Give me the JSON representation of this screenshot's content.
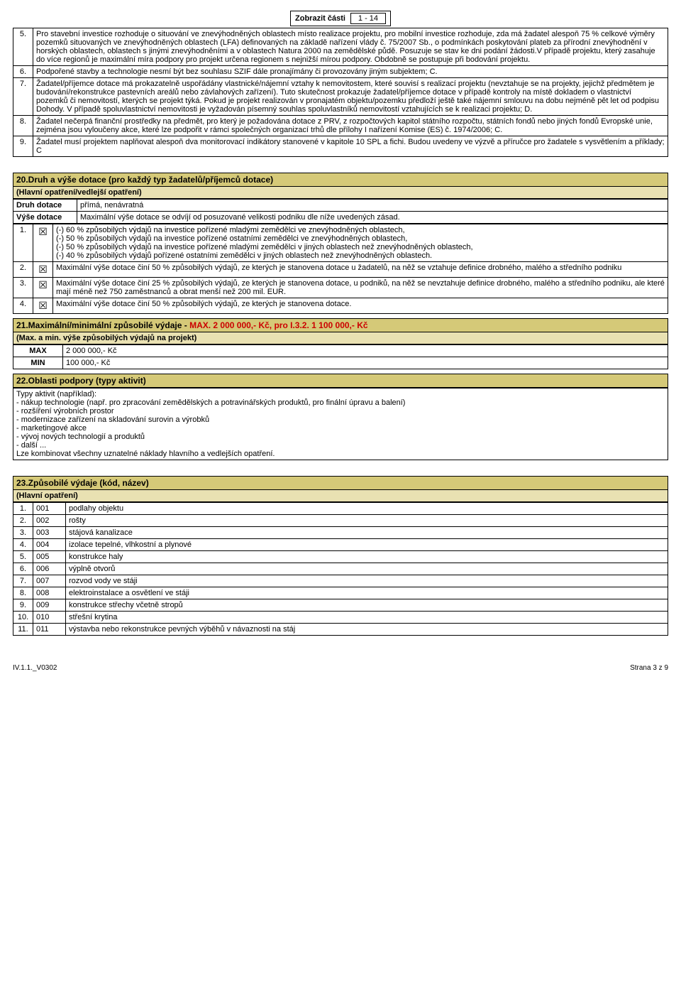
{
  "zobrazit": {
    "label": "Zobrazit části",
    "value": "1 - 14"
  },
  "criteria": [
    {
      "n": "5.",
      "text": "Pro stavební investice rozhoduje o situování ve znevýhodněných oblastech místo realizace projektu, pro mobilní investice rozhoduje, zda má žadatel alespoň  75 % celkové výměry pozemků situovaných ve znevýhodněných oblastech (LFA) definovaných na základě nařízení vlády č. 75/2007 Sb., o podmínkách poskytování plateb za přírodní znevýhodnění v horských oblastech, oblastech s jinými znevýhodněními a v oblastech Natura 2000 na zemědělské půdě. Posuzuje se stav ke dni podání žádosti.V případě projektu, který zasahuje do více regionů je maximální míra podpory pro projekt určena regionem s nejnižší mírou podpory. Obdobně se postupuje při bodování projektu."
    },
    {
      "n": "6.",
      "text": "Podpořené stavby a technologie nesmí být bez souhlasu SZIF dále pronajímány či provozovány jiným subjektem; C."
    },
    {
      "n": "7.",
      "text": "Žadatel/příjemce dotace má prokazatelně uspořádány vlastnické/nájemní vztahy k nemovitostem, které souvisí s realizací projektu (nevztahuje se na projekty, jejichž předmětem je budování/rekonstrukce pastevních areálů nebo závlahových zařízení). Tuto skutečnost prokazuje žadatel/příjemce dotace v případě kontroly na místě dokladem o vlastnictví pozemků či nemovitostí, kterých se projekt týká. Pokud je projekt realizován v pronajatém objektu/pozemku předloží ještě také nájemní smlouvu na dobu nejméně pět let od podpisu Dohody. V případě spoluvlastnictví nemovitosti je vyžadován písemný souhlas spoluvlastníků nemovitostí vztahujících se k realizaci projektu; D."
    },
    {
      "n": "8.",
      "text": "Žadatel nečerpá finanční prostředky na předmět, pro který je  požadována dotace z PRV, z rozpočtových kapitol státního rozpočtu, státních fondů nebo jiných fondů Evropské unie, zejména jsou vyloučeny akce, které lze podpořit v rámci společných organizací trhů dle přílohy I nařízení Komise (ES) č. 1974/2006; C."
    },
    {
      "n": "9.",
      "text": "Žadatel musí projektem naplňovat alespoň dva monitorovací indikátory stanovené v kapitole 10 SPL a fichi. Budou uvedeny ve výzvě a příručce pro žadatele s vysvětlením a příklady; C"
    }
  ],
  "s20": {
    "title": "20.Druh a výše dotace (pro každý typ žadatelů/příjemců dotace)",
    "subtitle": "(Hlavní opatření/vedlejší opatření)",
    "rows": [
      {
        "label": "Druh dotace",
        "text": "přímá, nenávratná"
      },
      {
        "label": "Výše dotace",
        "text": "Maximální výše dotace se odvíjí od posuzované velikosti podniku dle níže uvedených zásad."
      }
    ],
    "items": [
      {
        "n": "1.",
        "chk": "☒",
        "text": "(-) 60 % způsobilých výdajů na investice pořízené mladými zemědělci ve znevýhodněných oblastech,\n(-) 50 % způsobilých výdajů na investice pořízené ostatními zemědělci ve znevýhodněných oblastech,\n(-) 50 % způsobilých výdajů na investice pořízené mladými zemědělci v jiných oblastech než znevýhodněných oblastech,\n(-) 40 % způsobilých výdajů pořízené ostatními zemědělci v jiných oblastech než znevýhodněných oblastech."
      },
      {
        "n": "2.",
        "chk": "☒",
        "text": "Maximální výše dotace činí 50 % způsobilých výdajů, ze kterých je stanovena dotace u žadatelů, na něž se vztahuje definice drobného, malého a středního podniku"
      },
      {
        "n": "3.",
        "chk": "☒",
        "text": "Maximální výše dotace činí 25 % způsobilých výdajů, ze kterých je stanovena dotace, u podniků, na něž se nevztahuje definice drobného, malého a středního podniku, ale které mají méně než 750 zaměstnanců a obrat menší než 200 mil. EUR."
      },
      {
        "n": "4.",
        "chk": "☒",
        "text": "Maximální výše dotace činí 50 % způsobilých výdajů, ze kterých je stanovena dotace."
      }
    ]
  },
  "s21": {
    "title_pre": "21.Maximální/minimální způsobilé výdaje - ",
    "title_red": "MAX. 2 000 000,- Kč, pro I.3.2. 1 100 000,- Kč",
    "subtitle": "(Max. a min. výše způsobilých výdajů na projekt)",
    "max_label": "MAX",
    "max_value": "2 000 000,- Kč",
    "min_label": "MIN",
    "min_value": "100 000,- Kč"
  },
  "s22": {
    "title": "22.Oblasti podpory (typy aktivit)",
    "body": "Typy aktivit (například):\n- nákup technologie (např. pro zpracování zemědělských a potravinářských produktů, pro finální úpravu a balení)\n- rozšíření výrobních prostor\n- modernizace zařízení na skladování surovin a výrobků\n- marketingové akce\n- vývoj nových technologií a produktů\n- další ...\nLze kombinovat všechny uznatelné náklady hlavního a vedlejších opatření."
  },
  "s23": {
    "title": "23.Způsobilé výdaje (kód, název)",
    "subtitle": "(Hlavní opatření)",
    "rows": [
      {
        "n": "1.",
        "code": "001",
        "text": "podlahy  objektu"
      },
      {
        "n": "2.",
        "code": "002",
        "text": "rošty"
      },
      {
        "n": "3.",
        "code": "003",
        "text": "stájová kanalizace"
      },
      {
        "n": "4.",
        "code": "004",
        "text": "izolace tepelné, vlhkostní a plynové"
      },
      {
        "n": "5.",
        "code": "005",
        "text": "konstrukce haly"
      },
      {
        "n": "6.",
        "code": "006",
        "text": "výplně otvorů"
      },
      {
        "n": "7.",
        "code": "007",
        "text": "rozvod vody ve stáji"
      },
      {
        "n": "8.",
        "code": "008",
        "text": "elektroinstalace a osvětlení ve stáji"
      },
      {
        "n": "9.",
        "code": "009",
        "text": "konstrukce střechy včetně stropů"
      },
      {
        "n": "10.",
        "code": "010",
        "text": "střešní krytina"
      },
      {
        "n": "11.",
        "code": "011",
        "text": "výstavba nebo rekonstrukce pevných výběhů v návaznosti na stáj"
      }
    ]
  },
  "footer": {
    "left": "IV.1.1._V0302",
    "right": "Strana 3 z 9"
  }
}
